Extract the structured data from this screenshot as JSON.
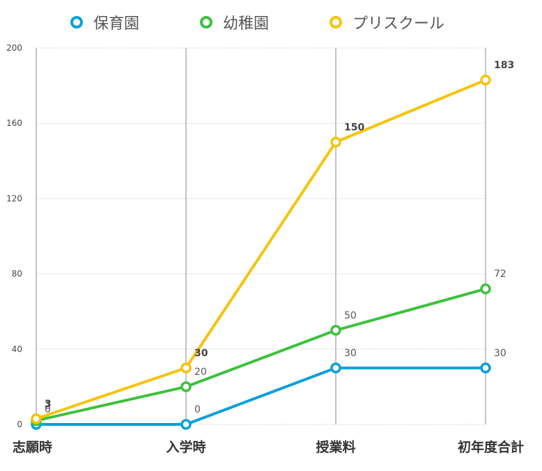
{
  "chart_data": {
    "type": "line",
    "title": "",
    "xlabel": "",
    "ylabel": "",
    "categories": [
      "志願時",
      "入学時",
      "授業料",
      "初年度合計"
    ],
    "ylim": [
      0,
      200
    ],
    "yticks": [
      0,
      40,
      80,
      120,
      160,
      200
    ],
    "grid": true,
    "legend": "top",
    "series": [
      {
        "name": "保育園",
        "color": "#0aa0d8",
        "values": [
          0,
          0,
          30,
          30
        ],
        "labels": [
          "0",
          "0",
          "30",
          "30"
        ],
        "bold": false
      },
      {
        "name": "幼稚園",
        "color": "#3cc13c",
        "values": [
          2,
          20,
          50,
          72
        ],
        "labels": [
          "2",
          "20",
          "50",
          "72"
        ],
        "bold": false
      },
      {
        "name": "プリスクール",
        "color": "#f7c30a",
        "values": [
          3,
          30,
          150,
          183
        ],
        "labels": [
          "3",
          "30",
          "150",
          "183"
        ],
        "bold": true
      }
    ]
  }
}
